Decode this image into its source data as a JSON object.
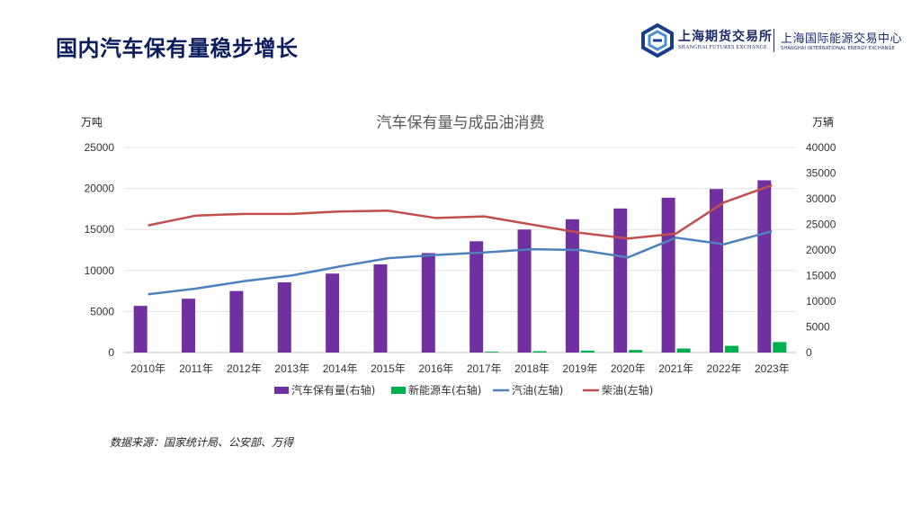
{
  "slide": {
    "title": "国内汽车保有量稳步增长",
    "source": "数据来源：国家统计局、公安部、万得"
  },
  "logo": {
    "cn_primary": "上海期货交易所",
    "en_primary": "SHANGHAI FUTURES EXCHANGE",
    "cn_secondary": "上海国际能源交易中心",
    "en_secondary": "SHANGHAI INTERNATIONAL ENERGY EXCHANGE"
  },
  "chart_data": {
    "type": "bar+line",
    "title": "汽车保有量与成品油消费",
    "left_axis": {
      "unit": "万吨",
      "min": 0,
      "max": 25000,
      "ticks": [
        0,
        5000,
        10000,
        15000,
        20000,
        25000
      ]
    },
    "right_axis": {
      "unit": "万辆",
      "min": 0,
      "max": 40000,
      "ticks": [
        0,
        5000,
        10000,
        15000,
        20000,
        25000,
        30000,
        35000,
        40000
      ]
    },
    "categories": [
      "2010年",
      "2011年",
      "2012年",
      "2013年",
      "2014年",
      "2015年",
      "2016年",
      "2017年",
      "2018年",
      "2019年",
      "2020年",
      "2021年",
      "2022年",
      "2023年"
    ],
    "series": [
      {
        "name": "汽车保有量(右轴)",
        "type": "bar",
        "axis": "right",
        "color": "#7030a0",
        "values": [
          9100,
          10500,
          12000,
          13700,
          15400,
          17200,
          19400,
          21700,
          24000,
          26000,
          28100,
          30200,
          31900,
          33600
        ]
      },
      {
        "name": "新能源车(右轴)",
        "type": "bar",
        "axis": "right",
        "color": "#00b050",
        "values": [
          0,
          0,
          0,
          0,
          0,
          0,
          0,
          160,
          260,
          380,
          490,
          780,
          1310,
          2040
        ]
      },
      {
        "name": "汽油(左轴)",
        "type": "line",
        "axis": "left",
        "color": "#4f81bd",
        "values": [
          7100,
          7800,
          8700,
          9400,
          10500,
          11500,
          11900,
          12200,
          12600,
          12500,
          11600,
          14000,
          13200,
          14800
        ]
      },
      {
        "name": "柴油(左轴)",
        "type": "line",
        "axis": "left",
        "color": "#c0504d",
        "values": [
          15500,
          16700,
          16900,
          16900,
          17200,
          17300,
          16400,
          16600,
          15600,
          14600,
          13900,
          14500,
          18300,
          20400
        ]
      }
    ],
    "grid": true,
    "legend": "bottom"
  }
}
